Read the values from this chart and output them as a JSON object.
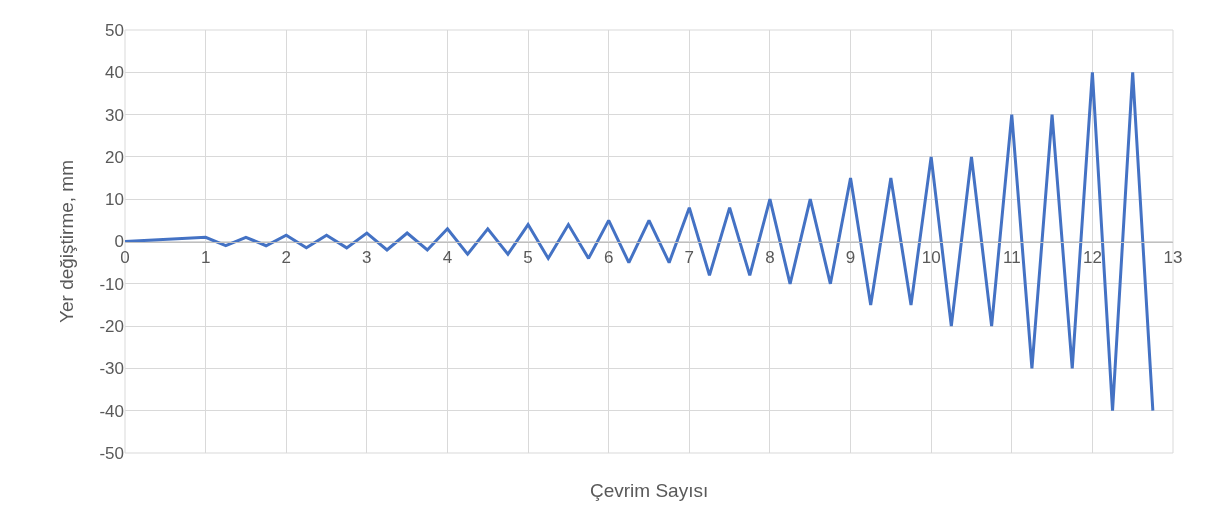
{
  "chart_data": {
    "type": "line",
    "xlabel": "Çevrim Sayısı",
    "ylabel": "Yer değiştirme, mm",
    "x": [
      0,
      1,
      1.25,
      1.5,
      1.75,
      2,
      2.25,
      2.5,
      2.75,
      3,
      3.25,
      3.5,
      3.75,
      4,
      4.25,
      4.5,
      4.75,
      5,
      5.25,
      5.5,
      5.75,
      6,
      6.25,
      6.5,
      6.75,
      7,
      7.25,
      7.5,
      7.75,
      8,
      8.25,
      8.5,
      8.75,
      9,
      9.25,
      9.5,
      9.75,
      10,
      10.25,
      10.5,
      10.75,
      11,
      11.25,
      11.5,
      11.75,
      12,
      12.25,
      12.5,
      12.75
    ],
    "series": [
      {
        "color": "#4472c4",
        "values": [
          0,
          1,
          -1,
          1,
          -1,
          1.5,
          -1.5,
          1.5,
          -1.5,
          2,
          -2,
          2,
          -2,
          3,
          -3,
          3,
          -3,
          4,
          -4,
          4,
          -4,
          5,
          -5,
          5,
          -5,
          8,
          -8,
          8,
          -8,
          10,
          -10,
          10,
          -10,
          15,
          -15,
          15,
          -15,
          20,
          -20,
          20,
          -20,
          30,
          -30,
          30,
          -30,
          40,
          -40,
          40,
          -40
        ]
      }
    ],
    "xlim": [
      0,
      13
    ],
    "xticks": [
      0,
      1,
      2,
      3,
      4,
      5,
      6,
      7,
      8,
      9,
      10,
      11,
      12,
      13
    ],
    "ylim": [
      -50,
      50
    ],
    "yticks": [
      -50,
      -40,
      -30,
      -20,
      -10,
      0,
      10,
      20,
      30,
      40,
      50
    ],
    "grid": true,
    "marker": "none",
    "line_style": "solid"
  }
}
